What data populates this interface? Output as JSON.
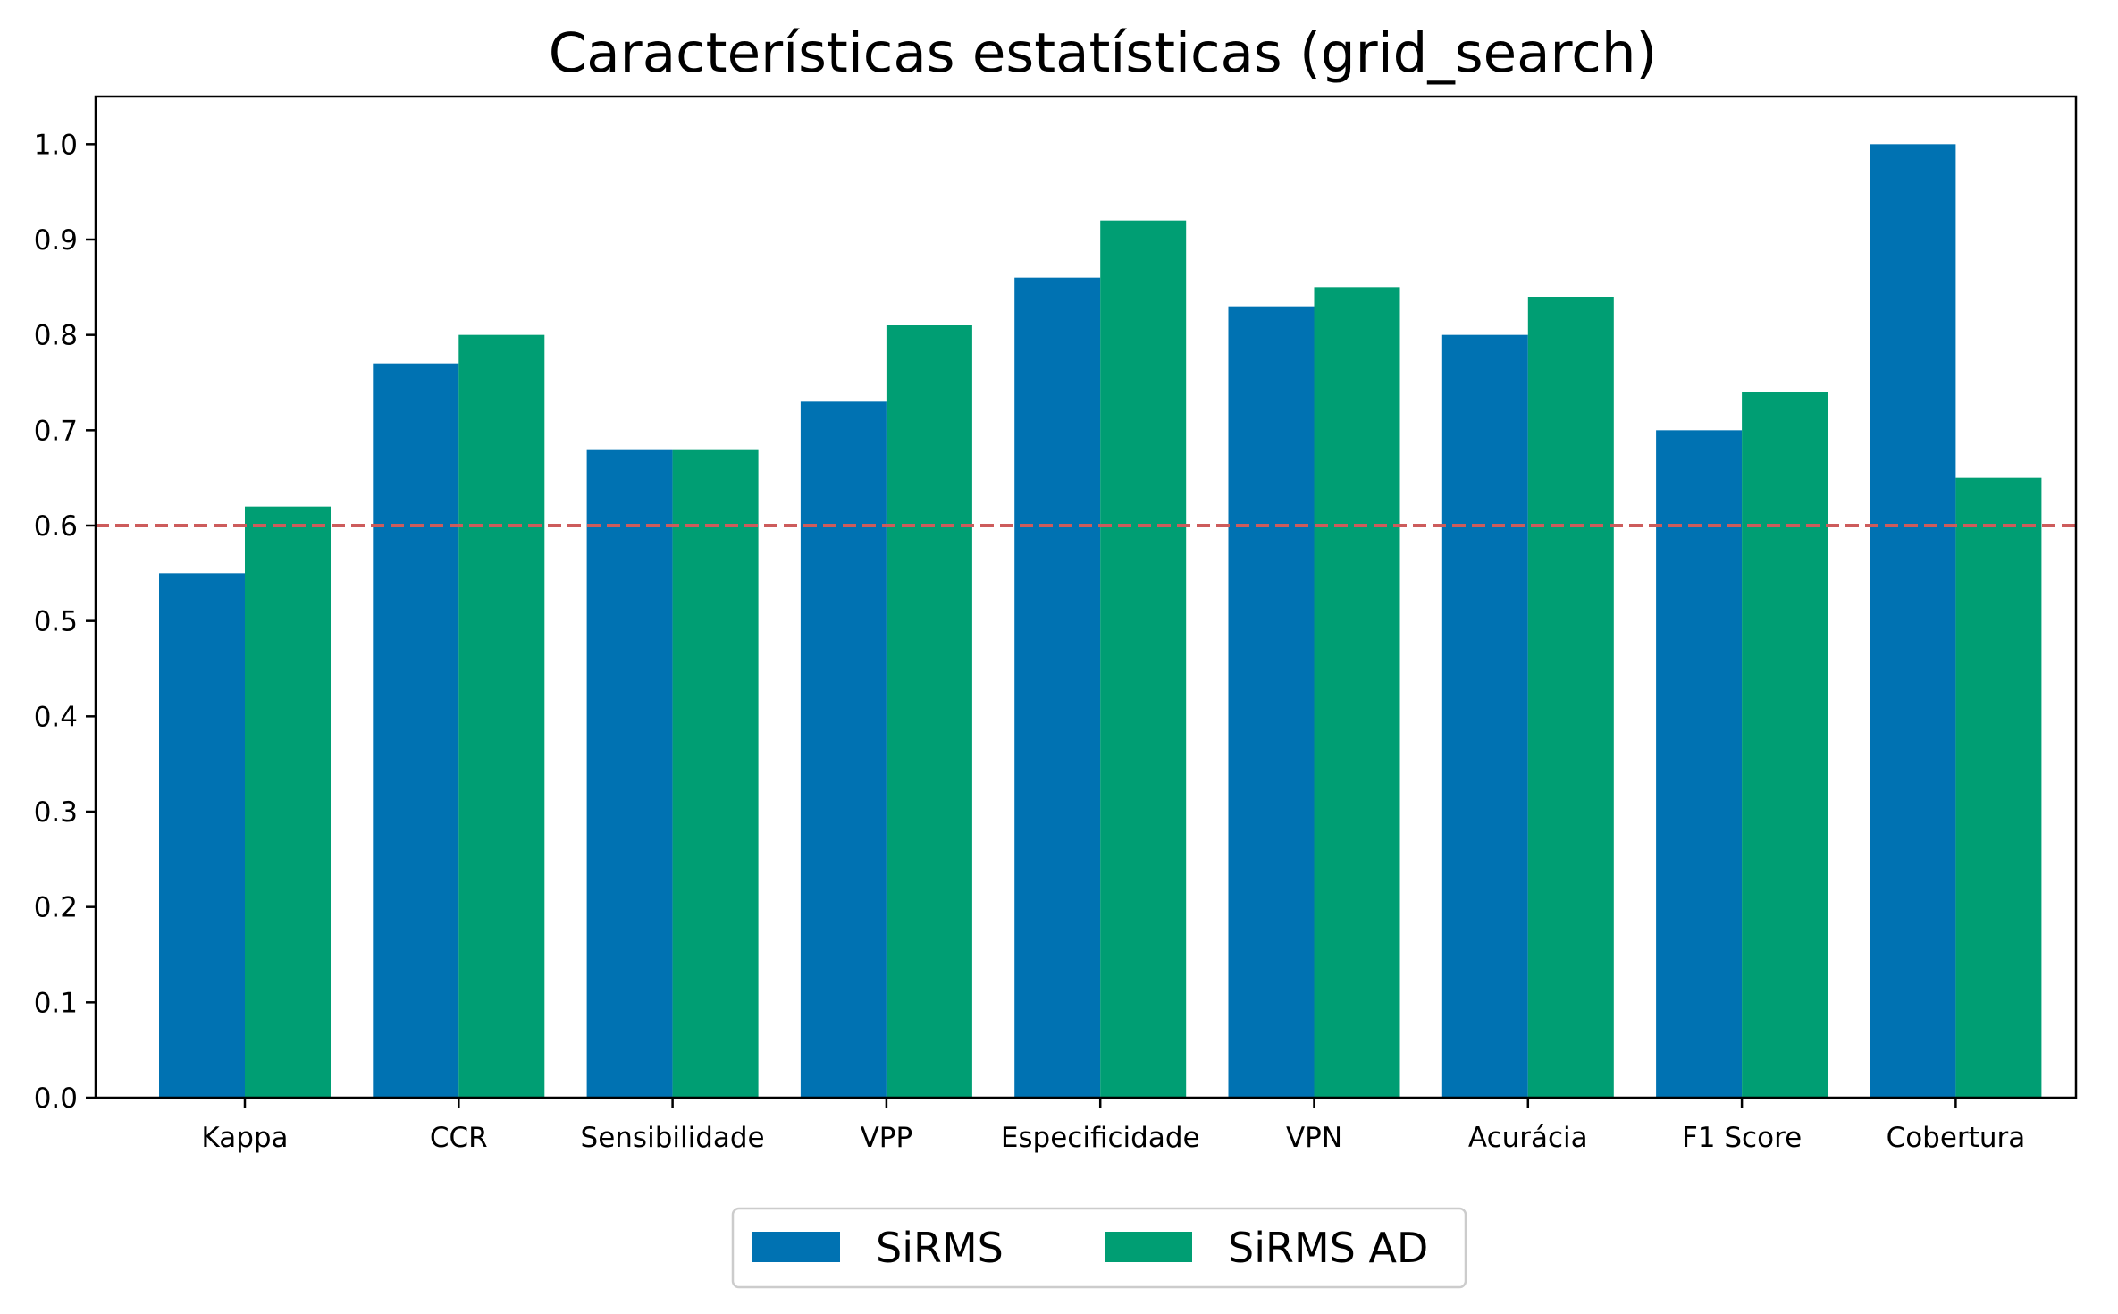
{
  "chart_data": {
    "type": "bar",
    "title": "Características estatísticas (grid_search)",
    "xlabel": "",
    "ylabel": "",
    "categories": [
      "Kappa",
      "CCR",
      "Sensibilidade",
      "VPP",
      "Especificidade",
      "VPN",
      "Acurácia",
      "F1 Score",
      "Cobertura"
    ],
    "series": [
      {
        "name": "SiRMS",
        "color": "#0072b2",
        "values": [
          0.55,
          0.77,
          0.68,
          0.73,
          0.86,
          0.83,
          0.8,
          0.7,
          1.0
        ]
      },
      {
        "name": "SiRMS AD",
        "color": "#009e73",
        "values": [
          0.62,
          0.8,
          0.68,
          0.81,
          0.92,
          0.85,
          0.84,
          0.74,
          0.65
        ]
      }
    ],
    "ylim": [
      0,
      1.05
    ],
    "yticks": [
      "0.0",
      "0.1",
      "0.2",
      "0.3",
      "0.4",
      "0.5",
      "0.6",
      "0.7",
      "0.8",
      "0.9",
      "1.0"
    ],
    "threshold": {
      "value": 0.6,
      "color": "#cd5c5c",
      "style": "dashed"
    },
    "grid": false,
    "legend": {
      "position": "bottom-center",
      "columns": 2
    }
  }
}
